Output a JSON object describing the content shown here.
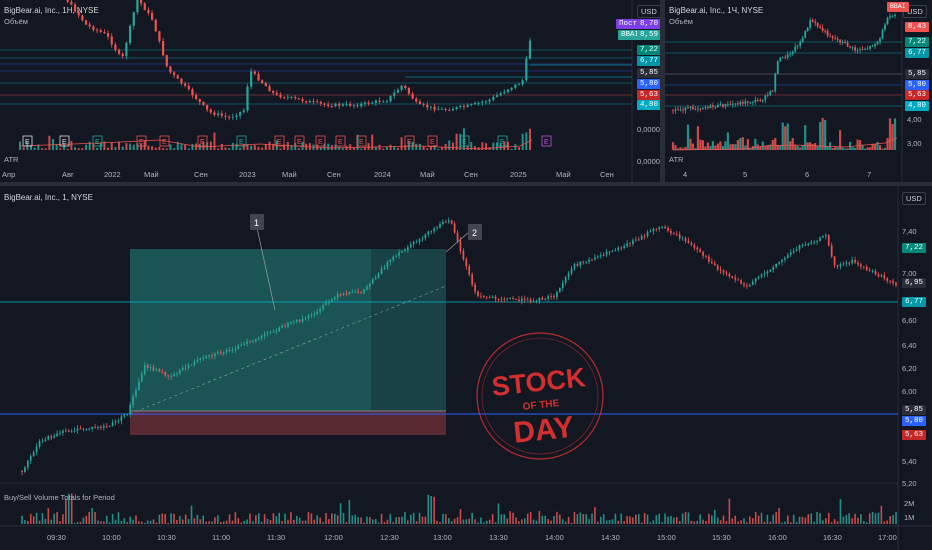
{
  "top_left": {
    "title": "BigBear.ai, Inc., 1Н, NYSE",
    "volume_label": "Объём",
    "atr_label": "ATR",
    "currency": "USD",
    "price_labels": [
      "7,22",
      "6,77",
      "5,85",
      "5,80",
      "5,63",
      "4,80"
    ],
    "tag_post": "Пост-",
    "tag_post_value": "8,70",
    "tag_bbai": "BBAI",
    "tag_bbai_value": "8,59",
    "scale_zero_a": "0,0000",
    "scale_zero_b": "0,0000",
    "time_labels": [
      "Апр",
      "Авг",
      "2022",
      "Май",
      "Сен",
      "2023",
      "Май",
      "Сен",
      "2024",
      "Май",
      "Сен",
      "2025",
      "Май",
      "Сен"
    ],
    "earnings_marker": "E"
  },
  "top_right": {
    "title": "BigBear.ai, Inc., 1Ч, NYSE",
    "volume_label": "Объём",
    "atr_label": "ATR",
    "currency": "USD",
    "badge": "BBAI",
    "price_labels": [
      "8,43",
      "7,22",
      "6,77",
      "5,85",
      "5,80",
      "5,63",
      "4,80",
      "4,00",
      "3,00"
    ],
    "time_labels": [
      "4",
      "5",
      "6",
      "7"
    ]
  },
  "main": {
    "title": "BigBear.ai, Inc., 1, NYSE",
    "currency": "USD",
    "price_labels": [
      "7,40",
      "7,22",
      "7,00",
      "6,95",
      "6,77",
      "6,60",
      "6,40",
      "6,20",
      "6,00",
      "5,85",
      "5,80",
      "5,63",
      "5,40",
      "5,20"
    ],
    "annotation_1": "1",
    "annotation_2": "2",
    "stamp_line1": "STOCK",
    "stamp_line2": "OF THE",
    "stamp_line3": "DAY",
    "volume_indicator": "Buy/Sell Volume Totals for Period",
    "volume_scale": [
      "2M",
      "1M"
    ],
    "time_labels": [
      "09:30",
      "10:00",
      "10:30",
      "11:00",
      "11:30",
      "12:00",
      "12:30",
      "13:00",
      "13:30",
      "14:00",
      "14:30",
      "15:00",
      "15:30",
      "16:00",
      "16:30",
      "17:00"
    ]
  },
  "colors": {
    "background": "#131722",
    "bull": "#26a69a",
    "bear": "#ef5350",
    "cyan_line": "#00bcd4",
    "blue_line": "#2962ff",
    "stamp_red": "#d32f2f"
  }
}
